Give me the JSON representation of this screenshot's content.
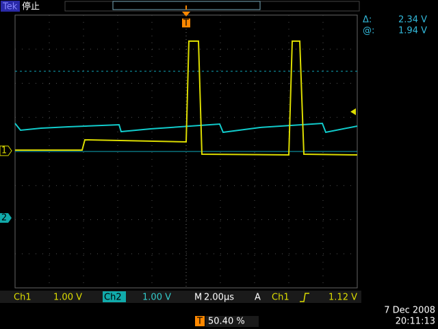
{
  "header": {
    "brand": "Tek",
    "status": "停止"
  },
  "cursors": {
    "delta_label": "Δ:",
    "delta_value": "2.34 V",
    "at_label": "@:",
    "at_value": "1.94 V"
  },
  "markers": {
    "trigger": "T",
    "ch1": "1",
    "ch2": "2"
  },
  "status_bar": {
    "ch1_label": "Ch1",
    "ch1_scale": "1.00 V",
    "ch2_label": "Ch2",
    "ch2_scale": "1.00 V",
    "timebase_label": "M",
    "timebase": "2.00µs",
    "trigger_mode": "A",
    "trigger_source": "Ch1",
    "trigger_level": "1.12 V"
  },
  "footer": {
    "trigger_position": "50.40 %",
    "date": "7 Dec 2008",
    "time": "20:11:13"
  }
}
